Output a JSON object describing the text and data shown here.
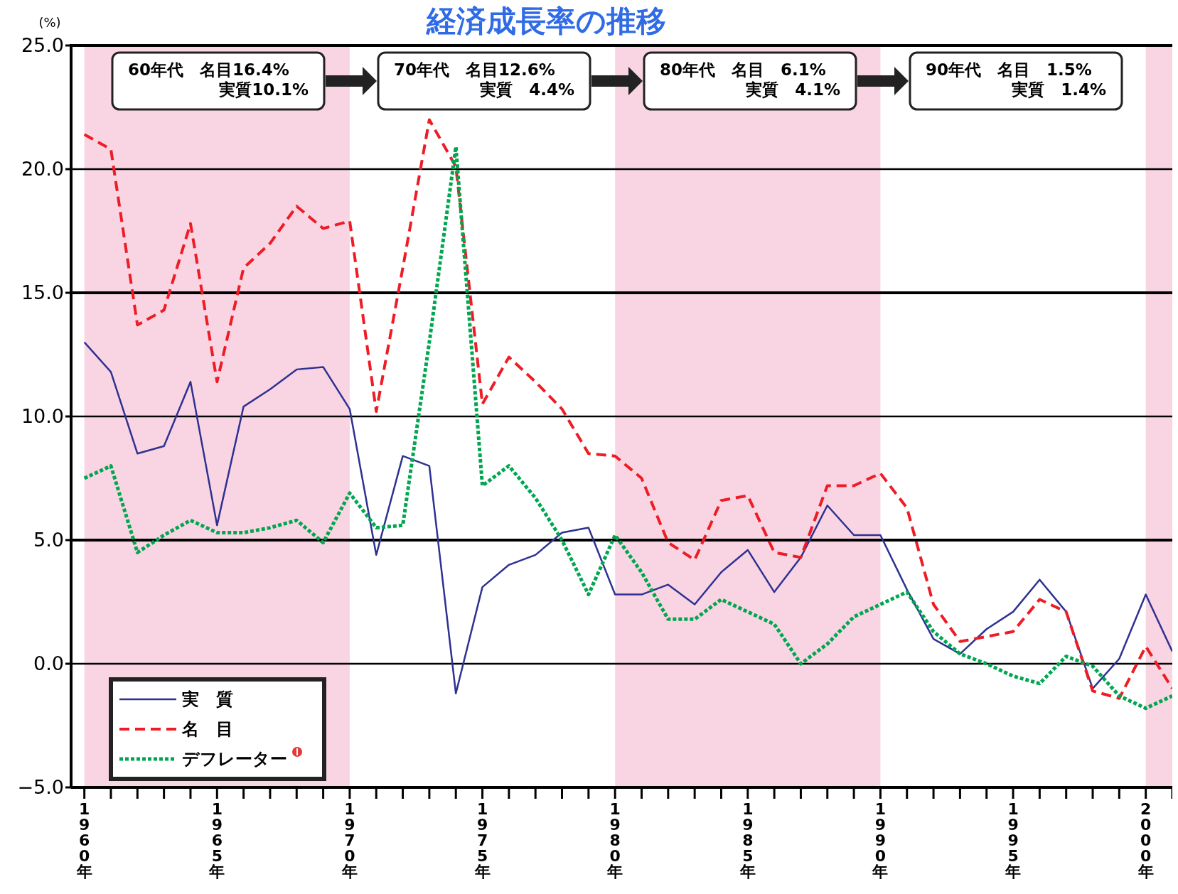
{
  "chart_data": {
    "type": "line",
    "title": "経済成長率の推移",
    "ylabel": "(%)",
    "x": [
      1960,
      1961,
      1962,
      1963,
      1964,
      1965,
      1966,
      1967,
      1968,
      1969,
      1970,
      1971,
      1972,
      1973,
      1974,
      1975,
      1976,
      1977,
      1978,
      1979,
      1980,
      1981,
      1982,
      1983,
      1984,
      1985,
      1986,
      1987,
      1988,
      1989,
      1990,
      1991,
      1992,
      1993,
      1994,
      1995,
      1996,
      1997,
      1998,
      1999,
      2000,
      2001
    ],
    "series": [
      {
        "name": "実　質",
        "color": "#2e3192",
        "line_style": "solid",
        "values": [
          13.0,
          11.8,
          8.5,
          8.8,
          11.4,
          5.6,
          10.4,
          11.1,
          11.9,
          12.0,
          10.3,
          4.4,
          8.4,
          8.0,
          -1.2,
          3.1,
          4.0,
          4.4,
          5.3,
          5.5,
          2.8,
          2.8,
          3.2,
          2.4,
          3.7,
          4.6,
          2.9,
          4.3,
          6.4,
          5.2,
          5.2,
          3.0,
          1.0,
          0.4,
          1.4,
          2.1,
          3.4,
          2.1,
          -1.0,
          0.2,
          2.8,
          0.5
        ]
      },
      {
        "name": "名　目",
        "color": "#ee1c25",
        "line_style": "dashed",
        "values": [
          21.4,
          20.8,
          13.7,
          14.3,
          17.8,
          11.4,
          16.0,
          17.0,
          18.5,
          17.6,
          17.9,
          10.2,
          16.0,
          22.0,
          20.1,
          10.5,
          12.4,
          11.4,
          10.3,
          8.5,
          8.4,
          7.5,
          4.9,
          4.2,
          6.6,
          6.8,
          4.5,
          4.3,
          7.2,
          7.2,
          7.7,
          6.3,
          2.4,
          0.9,
          1.1,
          1.3,
          2.6,
          2.1,
          -1.1,
          -1.4,
          0.7,
          -1.0
        ]
      },
      {
        "name": "デフレーター",
        "color": "#00a650",
        "line_style": "dotted",
        "values": [
          7.5,
          8.0,
          4.5,
          5.2,
          5.8,
          5.3,
          5.3,
          5.5,
          5.8,
          4.9,
          6.9,
          5.5,
          5.6,
          13.0,
          20.9,
          7.2,
          8.0,
          6.7,
          5.0,
          2.8,
          5.2,
          3.7,
          1.8,
          1.8,
          2.6,
          2.1,
          1.6,
          0.0,
          0.8,
          1.9,
          2.4,
          2.9,
          1.3,
          0.4,
          0.0,
          -0.5,
          -0.8,
          0.3,
          -0.1,
          -1.3,
          -1.8,
          -1.3
        ]
      }
    ],
    "xlim": [
      1959.5,
      2001
    ],
    "xticks": [
      {
        "value": 1960,
        "label": "1960年"
      },
      {
        "value": 1961,
        "label": null
      },
      {
        "value": 1962,
        "label": null
      },
      {
        "value": 1963,
        "label": null
      },
      {
        "value": 1964,
        "label": null
      },
      {
        "value": 1965,
        "label": "1965年"
      },
      {
        "value": 1966,
        "label": null
      },
      {
        "value": 1967,
        "label": null
      },
      {
        "value": 1968,
        "label": null
      },
      {
        "value": 1969,
        "label": null
      },
      {
        "value": 1970,
        "label": "1970年"
      },
      {
        "value": 1971,
        "label": null
      },
      {
        "value": 1972,
        "label": null
      },
      {
        "value": 1973,
        "label": null
      },
      {
        "value": 1974,
        "label": null
      },
      {
        "value": 1975,
        "label": "1975年"
      },
      {
        "value": 1976,
        "label": null
      },
      {
        "value": 1977,
        "label": null
      },
      {
        "value": 1978,
        "label": null
      },
      {
        "value": 1979,
        "label": null
      },
      {
        "value": 1980,
        "label": "1980年"
      },
      {
        "value": 1981,
        "label": null
      },
      {
        "value": 1982,
        "label": null
      },
      {
        "value": 1983,
        "label": null
      },
      {
        "value": 1984,
        "label": null
      },
      {
        "value": 1985,
        "label": "1985年"
      },
      {
        "value": 1986,
        "label": null
      },
      {
        "value": 1987,
        "label": null
      },
      {
        "value": 1988,
        "label": null
      },
      {
        "value": 1989,
        "label": null
      },
      {
        "value": 1990,
        "label": "1990年"
      },
      {
        "value": 1991,
        "label": null
      },
      {
        "value": 1992,
        "label": null
      },
      {
        "value": 1993,
        "label": null
      },
      {
        "value": 1994,
        "label": null
      },
      {
        "value": 1995,
        "label": "1995年"
      },
      {
        "value": 1996,
        "label": null
      },
      {
        "value": 1997,
        "label": null
      },
      {
        "value": 1998,
        "label": null
      },
      {
        "value": 1999,
        "label": null
      },
      {
        "value": 2000,
        "label": "2000年"
      },
      {
        "value": 2001,
        "label": null
      }
    ],
    "ylim": [
      -5,
      25
    ],
    "yticks": [
      {
        "value": -5,
        "label": "−5.0"
      },
      {
        "value": 0,
        "label": "0.0"
      },
      {
        "value": 5,
        "label": "5.0"
      },
      {
        "value": 10,
        "label": "10.0"
      },
      {
        "value": 15,
        "label": "15.0"
      },
      {
        "value": 20,
        "label": "20.0"
      },
      {
        "value": 25,
        "label": "25.0"
      }
    ],
    "grid": "y",
    "legend": "bottom left",
    "bands": [
      {
        "axis": "x",
        "from": 1960,
        "to": 1970,
        "color": "#f9d5e3"
      },
      {
        "axis": "x",
        "from": 1980,
        "to": 1990,
        "color": "#f9d5e3"
      },
      {
        "axis": "x",
        "from": 2000,
        "to": 2001,
        "color": "#f9d5e3"
      }
    ],
    "annotations": [
      "60年代　名目16.4%\n実質10.1%",
      "70年代　名目12.6%\n実質　4.4%",
      "80年代　名目　6.1%\n実質　4.1%",
      "90年代　名目　1.5%\n実質　1.4%"
    ]
  }
}
